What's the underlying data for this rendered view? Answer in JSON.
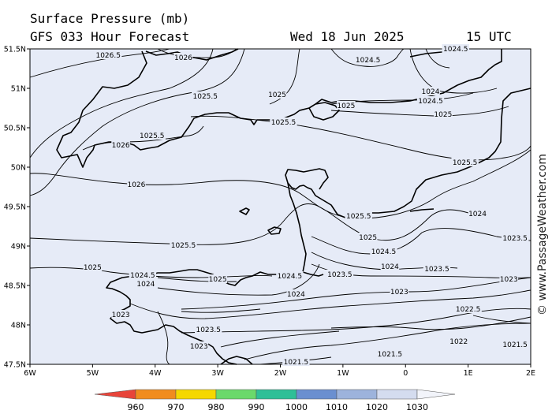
{
  "header": {
    "title": "Surface Pressure (mb)",
    "forecast": "GFS 033 Hour Forecast",
    "date": "Wed 18 Jun 2025",
    "time": "15 UTC"
  },
  "watermark": "© www.PassageWeather.com",
  "axes": {
    "lat_ticks": [
      "51.5N",
      "51N",
      "50.5N",
      "50N",
      "49.5N",
      "49N",
      "48.5N",
      "48N",
      "47.5N"
    ],
    "lon_ticks": [
      "6W",
      "5W",
      "4W",
      "3W",
      "2W",
      "1W",
      "0",
      "1E",
      "2E"
    ]
  },
  "isobar_labels": [
    {
      "text": "1026.5",
      "lon": -4.75,
      "lat": 51.42
    },
    {
      "text": "1026",
      "lon": -3.55,
      "lat": 51.39
    },
    {
      "text": "1024.5",
      "lon": -0.6,
      "lat": 51.36
    },
    {
      "text": "1024.5",
      "lon": 0.8,
      "lat": 51.5
    },
    {
      "text": "1025.5",
      "lon": -3.2,
      "lat": 50.9
    },
    {
      "text": "1025",
      "lon": -2.05,
      "lat": 50.92
    },
    {
      "text": "1024",
      "lon": 0.4,
      "lat": 50.96
    },
    {
      "text": "1024.5",
      "lon": 0.4,
      "lat": 50.84
    },
    {
      "text": "1025",
      "lon": -0.95,
      "lat": 50.78
    },
    {
      "text": "1025",
      "lon": 0.6,
      "lat": 50.67
    },
    {
      "text": "1025.5",
      "lon": -1.95,
      "lat": 50.57
    },
    {
      "text": "1025.5",
      "lon": -4.05,
      "lat": 50.4
    },
    {
      "text": "1026",
      "lon": -4.55,
      "lat": 50.28
    },
    {
      "text": "1025.5",
      "lon": 0.95,
      "lat": 50.06
    },
    {
      "text": "1026",
      "lon": -4.3,
      "lat": 49.78
    },
    {
      "text": "1024",
      "lon": 1.15,
      "lat": 49.41
    },
    {
      "text": "1025.5",
      "lon": -0.75,
      "lat": 49.38
    },
    {
      "text": "1023.5",
      "lon": 1.75,
      "lat": 49.1
    },
    {
      "text": "1025",
      "lon": -0.6,
      "lat": 49.11
    },
    {
      "text": "1025.5",
      "lon": -3.55,
      "lat": 49.01
    },
    {
      "text": "1024.5",
      "lon": -0.35,
      "lat": 48.93
    },
    {
      "text": "1025",
      "lon": -5.0,
      "lat": 48.73
    },
    {
      "text": "1024",
      "lon": -0.25,
      "lat": 48.74
    },
    {
      "text": "1023.5",
      "lon": 0.5,
      "lat": 48.71
    },
    {
      "text": "1024.5",
      "lon": -4.2,
      "lat": 48.63
    },
    {
      "text": "1023.5",
      "lon": -1.05,
      "lat": 48.64
    },
    {
      "text": "1024",
      "lon": -4.15,
      "lat": 48.52
    },
    {
      "text": "1025",
      "lon": -3.0,
      "lat": 48.58
    },
    {
      "text": "1024.5",
      "lon": -1.85,
      "lat": 48.62
    },
    {
      "text": "1023",
      "lon": 1.65,
      "lat": 48.58
    },
    {
      "text": "1024",
      "lon": -1.75,
      "lat": 48.39
    },
    {
      "text": "1023",
      "lon": -0.1,
      "lat": 48.42
    },
    {
      "text": "1023",
      "lon": -4.55,
      "lat": 48.13
    },
    {
      "text": "1022.5",
      "lon": 1.0,
      "lat": 48.2
    },
    {
      "text": "1023.5",
      "lon": -3.15,
      "lat": 47.94
    },
    {
      "text": "1023",
      "lon": -3.3,
      "lat": 47.73
    },
    {
      "text": "1022",
      "lon": 0.85,
      "lat": 47.79
    },
    {
      "text": "1021.5",
      "lon": 1.75,
      "lat": 47.75
    },
    {
      "text": "1021.5",
      "lon": -0.25,
      "lat": 47.63
    },
    {
      "text": "1021.5",
      "lon": -1.75,
      "lat": 47.53
    }
  ],
  "colorbar": {
    "labels": [
      "960",
      "970",
      "980",
      "990",
      "1000",
      "1010",
      "1020",
      "1030"
    ],
    "colors": [
      "#e8443a",
      "#f18c1e",
      "#f5d800",
      "#6bd96b",
      "#2fbf97",
      "#6a8fd0",
      "#9db3dc",
      "#d4dcef"
    ]
  },
  "colors": {
    "sea": "#e6ebf7",
    "land": "#e6ebf7",
    "coast": "#000000",
    "isobar": "#000000"
  }
}
